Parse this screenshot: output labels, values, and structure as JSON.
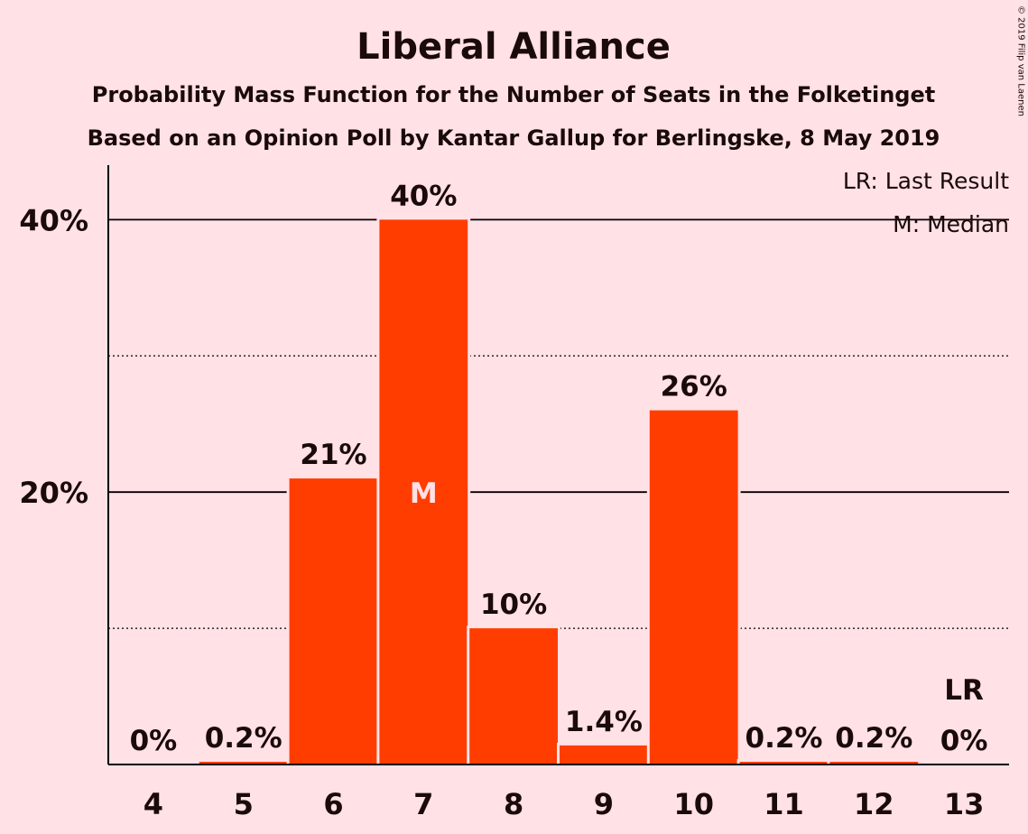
{
  "chart_data": {
    "type": "bar",
    "title": "Liberal Alliance",
    "subtitle": "Probability Mass Function for the Number of Seats in the Folketinget",
    "subtitle2": "Based on an Opinion Poll by Kantar Gallup for Berlingske, 8 May 2019",
    "copyright": "© 2019 Filip van Laenen",
    "categories": [
      "4",
      "5",
      "6",
      "7",
      "8",
      "9",
      "10",
      "11",
      "12",
      "13"
    ],
    "values": [
      0,
      0.2,
      21,
      40,
      10,
      1.4,
      26,
      0.2,
      0.2,
      0
    ],
    "data_labels": [
      "0%",
      "0.2%",
      "21%",
      "40%",
      "10%",
      "1.4%",
      "26%",
      "0.2%",
      "0.2%",
      "0%"
    ],
    "y_ticks": [
      {
        "value": 20,
        "label": "20%"
      },
      {
        "value": 40,
        "label": "40%"
      }
    ],
    "y_minor_ticks": [
      10,
      30
    ],
    "ylim": [
      0,
      44
    ],
    "median_category": "7",
    "median_marker": "M",
    "last_result_category": "13",
    "last_result_marker": "LR",
    "legend": [
      "LR: Last Result",
      "M: Median"
    ],
    "legend_position": "top-right",
    "bar_color": "#FF3D00",
    "background_color": "#FFE1E6",
    "text_color": "#1a0a0a"
  }
}
